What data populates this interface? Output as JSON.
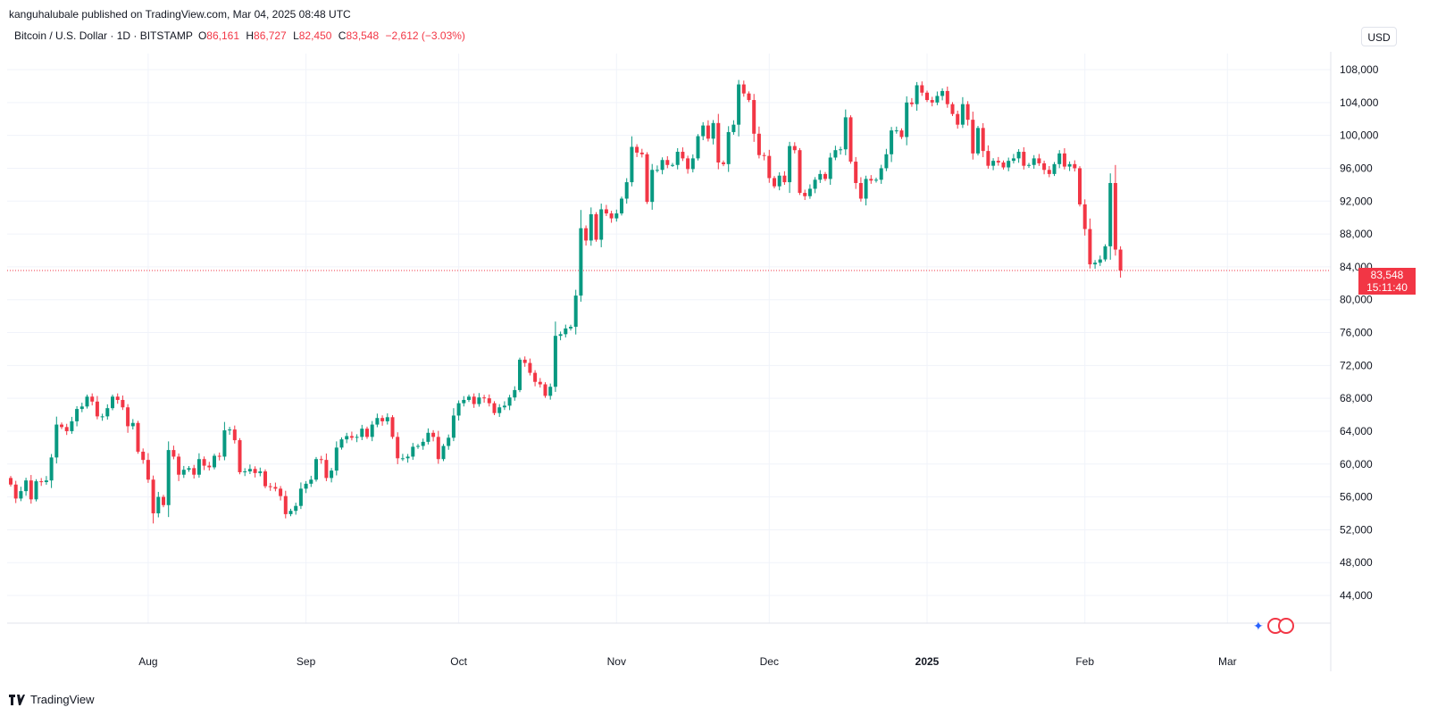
{
  "header": {
    "published": "kanguhalubale published on TradingView.com, Mar 04, 2025 08:48 UTC"
  },
  "legend": {
    "symbol": "Bitcoin / U.S. Dollar · 1D · BITSTAMP",
    "o_label": "O",
    "o_value": "86,161",
    "h_label": "H",
    "h_value": "86,727",
    "l_label": "L",
    "l_value": "82,450",
    "c_label": "C",
    "c_value": "83,548",
    "change": "−2,612 (−3.03%)"
  },
  "currency_button": "USD",
  "price_tag": {
    "price": "83,548",
    "countdown": "15:11:40"
  },
  "footer": {
    "brand": "TradingView"
  },
  "colors": {
    "up": "#089981",
    "down": "#f23645",
    "grid": "#f0f3fa",
    "axis_text": "#131722"
  },
  "chart_data": {
    "type": "candlestick",
    "title": "Bitcoin / U.S. Dollar · 1D · BITSTAMP",
    "y_ticks": [
      "44,000",
      "48,000",
      "52,000",
      "56,000",
      "60,000",
      "64,000",
      "68,000",
      "72,000",
      "76,000",
      "80,000",
      "84,000",
      "88,000",
      "92,000",
      "96,000",
      "100,000",
      "104,000",
      "108,000"
    ],
    "y_tick_values": [
      44000,
      48000,
      52000,
      56000,
      60000,
      64000,
      68000,
      72000,
      76000,
      80000,
      84000,
      88000,
      92000,
      96000,
      100000,
      104000,
      108000
    ],
    "x_labels": [
      {
        "label": "Aug",
        "date": "2024-08-01",
        "bold": false
      },
      {
        "label": "Sep",
        "date": "2024-09-01",
        "bold": false
      },
      {
        "label": "Oct",
        "date": "2024-10-01",
        "bold": false
      },
      {
        "label": "Nov",
        "date": "2024-11-01",
        "bold": false
      },
      {
        "label": "Dec",
        "date": "2024-12-01",
        "bold": false
      },
      {
        "label": "2025",
        "date": "2025-01-01",
        "bold": true
      },
      {
        "label": "Feb",
        "date": "2025-02-01",
        "bold": false
      },
      {
        "label": "Mar",
        "date": "2025-03-01",
        "bold": false
      }
    ],
    "last_close": 83548,
    "start_date": "2024-07-05",
    "close": [
      57500,
      55800,
      56700,
      58000,
      55700,
      57900,
      57800,
      58000,
      60800,
      64800,
      64500,
      64000,
      65200,
      66700,
      67000,
      68200,
      67600,
      65800,
      65800,
      66800,
      68200,
      67800,
      66900,
      64600,
      65000,
      61500,
      60500,
      58100,
      54000,
      56000,
      55000,
      61700,
      60900,
      58700,
      59300,
      59500,
      58700,
      60600,
      59800,
      59600,
      61000,
      60900,
      64100,
      64200,
      62900,
      59000,
      59100,
      59400,
      58900,
      59100,
      57300,
      57200,
      57000,
      56100,
      53900,
      54300,
      54900,
      57000,
      57600,
      58100,
      60600,
      60500,
      58300,
      59200,
      62000,
      63000,
      63400,
      63200,
      63300,
      64300,
      63300,
      64800,
      65600,
      65200,
      65700,
      63300,
      60700,
      60700,
      60900,
      62100,
      62200,
      62700,
      63800,
      63300,
      60600,
      62200,
      63200,
      65900,
      67400,
      67800,
      68200,
      67300,
      68100,
      68000,
      67400,
      66200,
      66900,
      67100,
      68100,
      69000,
      72700,
      72300,
      71100,
      70000,
      69700,
      68300,
      69400,
      75600,
      75800,
      76500,
      76700,
      80500,
      88700,
      87200,
      90400,
      87300,
      91000,
      90500,
      89900,
      90500,
      92300,
      94300,
      98600,
      97900,
      97700,
      91900,
      95800,
      95800,
      97000,
      96400,
      96400,
      98000,
      97200,
      95900,
      97200,
      99900,
      101200,
      99600,
      101500,
      96700,
      96500,
      100400,
      101300,
      106200,
      105100,
      104300,
      100200,
      97600,
      97500,
      94800,
      93800,
      95100,
      94300,
      98700,
      98200,
      93000,
      92600,
      93500,
      94600,
      95300,
      94700,
      97300,
      98200,
      98300,
      102200,
      96800,
      94200,
      92300,
      94700,
      94500,
      94600,
      96000,
      97700,
      100600,
      100600,
      99800,
      104000,
      103800,
      106100,
      105200,
      104300,
      104000,
      104800,
      105400,
      103800,
      102600,
      101300,
      103800,
      101900,
      97800,
      100900,
      98100,
      96300,
      96900,
      96700,
      96100,
      96900,
      97200,
      98000,
      96300,
      96400,
      97200,
      96600,
      95800,
      95300,
      96500,
      97800,
      96200,
      96500,
      96000,
      91600,
      88600,
      84300,
      84500,
      84900,
      86500,
      94200,
      86100,
      83550
    ]
  }
}
